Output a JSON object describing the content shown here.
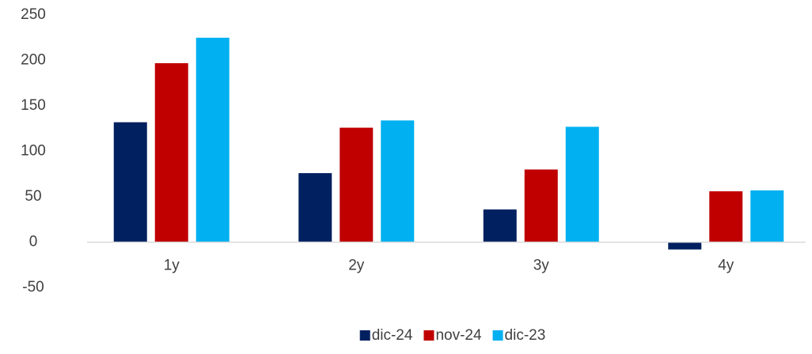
{
  "chart_data": {
    "type": "bar",
    "categories": [
      "1y",
      "2y",
      "3y",
      "4y"
    ],
    "series": [
      {
        "name": "dic-24",
        "color": "#002060",
        "values": [
          132,
          76,
          36,
          -8
        ]
      },
      {
        "name": "nov-24",
        "color": "#c00000",
        "values": [
          197,
          126,
          80,
          56
        ]
      },
      {
        "name": "dic-23",
        "color": "#00b0f0",
        "values": [
          225,
          134,
          127,
          57
        ]
      }
    ],
    "ylim": [
      -50,
      250
    ],
    "yticks": [
      -50,
      0,
      50,
      100,
      150,
      200,
      250
    ],
    "grid": false,
    "legend": "bottom"
  }
}
